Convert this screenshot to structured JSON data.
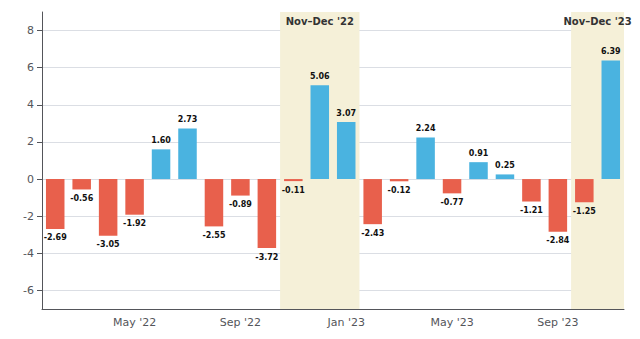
{
  "chart_data": {
    "type": "bar",
    "categories": [
      null,
      null,
      null,
      "May '22",
      null,
      null,
      null,
      "Sep '22",
      null,
      null,
      null,
      "Jan '23",
      null,
      null,
      null,
      "May '23",
      null,
      null,
      null,
      "Sep '23",
      null,
      null
    ],
    "values": [
      -2.69,
      -0.56,
      -3.05,
      -1.92,
      1.6,
      2.73,
      -2.55,
      -0.89,
      -3.72,
      -0.11,
      5.06,
      3.07,
      -2.43,
      -0.12,
      2.24,
      -0.77,
      0.91,
      0.25,
      -1.21,
      -2.84,
      -1.25,
      6.39
    ],
    "colors": [
      "#e8604c",
      "#e8604c",
      "#e8604c",
      "#e8604c",
      "#4ab3e0",
      "#4ab3e0",
      "#e8604c",
      "#e8604c",
      "#e8604c",
      "#e8604c",
      "#4ab3e0",
      "#4ab3e0",
      "#e8604c",
      "#e8604c",
      "#4ab3e0",
      "#e8604c",
      "#4ab3e0",
      "#4ab3e0",
      "#e8604c",
      "#e8604c",
      "#e8604c",
      "#4ab3e0"
    ],
    "data_labels": true,
    "value_labels": [
      "-2.69",
      "-0.56",
      "-3.05",
      "-1.92",
      "1.60",
      "2.73",
      "-2.55",
      "-0.89",
      "-3.72",
      "-0.11",
      "5.06",
      "3.07",
      "-2.43",
      "-0.12",
      "2.24",
      "-0.77",
      "0.91",
      "0.25",
      "-1.21",
      "-2.84",
      "-1.25",
      "6.39"
    ],
    "ylim": [
      -7.0,
      9.0
    ],
    "yticks": [
      -6,
      -4,
      -2,
      0,
      2,
      4,
      6,
      8
    ],
    "grid": true,
    "annotations": [
      {
        "text": "Nov–Dec '22",
        "start": 9,
        "end": 11,
        "color": "#f5f0d8"
      },
      {
        "text": "Nov–Dec '23",
        "start": 20,
        "end": 21,
        "color": "#f5f0d8"
      }
    ]
  }
}
